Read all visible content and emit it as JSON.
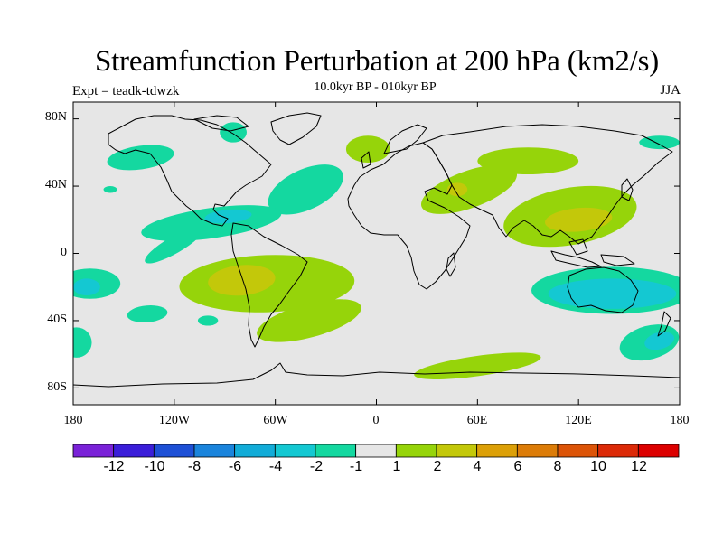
{
  "title": "Streamfunction Perturbation at 200 hPa (km2/s)",
  "subtitle": "10.0kyr BP - 010kyr BP",
  "experiment_label": "Expt = teadk-tdwzk",
  "season": "JJA",
  "map": {
    "projection": "cylindrical equidistant",
    "lon_range": [
      -180,
      180
    ],
    "lat_range": [
      -90,
      90
    ],
    "background": "#e6e6e6",
    "coastline_color": "#000000",
    "y_ticks": [
      {
        "lat": 80,
        "label": "80N"
      },
      {
        "lat": 40,
        "label": "40N"
      },
      {
        "lat": 0,
        "label": "0"
      },
      {
        "lat": -40,
        "label": "40S"
      },
      {
        "lat": -80,
        "label": "80S"
      }
    ],
    "x_ticks": [
      {
        "lon": -180,
        "label": "180"
      },
      {
        "lon": -120,
        "label": "120W"
      },
      {
        "lon": -60,
        "label": "60W"
      },
      {
        "lon": 0,
        "label": "0"
      },
      {
        "lon": 60,
        "label": "60E"
      },
      {
        "lon": 120,
        "label": "120E"
      },
      {
        "lon": 180,
        "label": "180"
      }
    ]
  },
  "colorbar": {
    "colors": [
      "#7a22d8",
      "#3b1ed9",
      "#1e50d6",
      "#1a84dc",
      "#12acd8",
      "#14c8d2",
      "#14d8a0",
      "#e6e6e6",
      "#96d40a",
      "#c3c80a",
      "#dca008",
      "#dc7c08",
      "#dc5408",
      "#dc2a08",
      "#dc0000"
    ],
    "labels": [
      "-12",
      "-10",
      "-8",
      "-6",
      "-4",
      "-2",
      "-1",
      "1",
      "2",
      "4",
      "6",
      "8",
      "10",
      "12"
    ]
  },
  "anomaly_regions": [
    {
      "name": "north-pacific-positive-1",
      "level": "-1",
      "lon": -140,
      "lat": 57,
      "rx": 20,
      "ry": 7,
      "rot": -8
    },
    {
      "name": "north-atlantic-negative",
      "level": "-1",
      "lon": -42,
      "lat": 38,
      "rx": 24,
      "ry": 12,
      "rot": -25
    },
    {
      "name": "caribbean-trough",
      "level": "-1",
      "lon": -98,
      "lat": 18,
      "rx": 42,
      "ry": 9,
      "rot": -8
    },
    {
      "name": "caribbean-core",
      "level": "-2",
      "lon": -88,
      "lat": 22,
      "rx": 14,
      "ry": 4,
      "rot": -5
    },
    {
      "name": "east-pacific-tail",
      "level": "-1",
      "lon": -120,
      "lat": 5,
      "rx": 20,
      "ry": 5,
      "rot": -30
    },
    {
      "name": "small-cell-pacific",
      "level": "-1",
      "lon": -158,
      "lat": 38,
      "rx": 4,
      "ry": 2,
      "rot": 0
    },
    {
      "name": "west-pacific-south",
      "level": "-1",
      "lon": -170,
      "lat": -18,
      "rx": 18,
      "ry": 9,
      "rot": 0
    },
    {
      "name": "west-pacific-south-core",
      "level": "-2",
      "lon": -172,
      "lat": -20,
      "rx": 8,
      "ry": 5,
      "rot": 0
    },
    {
      "name": "south-pacific-small",
      "level": "-1",
      "lon": -136,
      "lat": -36,
      "rx": 12,
      "ry": 5,
      "rot": -5
    },
    {
      "name": "south-pacific-cell",
      "level": "-1",
      "lon": -100,
      "lat": -40,
      "rx": 6,
      "ry": 3,
      "rot": 0
    },
    {
      "name": "south-pacific-edge",
      "level": "-1",
      "lon": -178,
      "lat": -53,
      "rx": 9,
      "ry": 9,
      "rot": 0
    },
    {
      "name": "australia-positive",
      "level": "-1",
      "lon": 140,
      "lat": -22,
      "rx": 48,
      "ry": 14,
      "rot": 0
    },
    {
      "name": "australia-core",
      "level": "-2",
      "lon": 140,
      "lat": -24,
      "rx": 38,
      "ry": 9,
      "rot": 0
    },
    {
      "name": "south-of-nz",
      "level": "-1",
      "lon": 162,
      "lat": -53,
      "rx": 18,
      "ry": 10,
      "rot": -15
    },
    {
      "name": "south-of-nz-core",
      "level": "-2",
      "lon": 168,
      "lat": -52,
      "rx": 9,
      "ry": 5,
      "rot": -15
    },
    {
      "name": "arctic-east",
      "level": "-1",
      "lon": 168,
      "lat": 66,
      "rx": 12,
      "ry": 4,
      "rot": 0
    },
    {
      "name": "north-america-high",
      "level": "-1",
      "lon": -85,
      "lat": 72,
      "rx": 8,
      "ry": 6,
      "rot": 0
    },
    {
      "name": "south-america-positive",
      "level": "1",
      "lon": -65,
      "lat": -18,
      "rx": 52,
      "ry": 17,
      "rot": -2
    },
    {
      "name": "south-atlantic-positive",
      "level": "1",
      "lon": -40,
      "lat": -40,
      "rx": 32,
      "ry": 10,
      "rot": -15
    },
    {
      "name": "south-america-core",
      "level": "2",
      "lon": -80,
      "lat": -16,
      "rx": 20,
      "ry": 9,
      "rot": -5
    },
    {
      "name": "europe-positive",
      "level": "1",
      "lon": -5,
      "lat": 62,
      "rx": 13,
      "ry": 8,
      "rot": 0
    },
    {
      "name": "middle-east-positive",
      "level": "1",
      "lon": 55,
      "lat": 38,
      "rx": 30,
      "ry": 11,
      "rot": -20
    },
    {
      "name": "asia-positive",
      "level": "1",
      "lon": 115,
      "lat": 22,
      "rx": 40,
      "ry": 17,
      "rot": -10
    },
    {
      "name": "siberia-positive",
      "level": "1",
      "lon": 90,
      "lat": 55,
      "rx": 30,
      "ry": 8,
      "rot": 0
    },
    {
      "name": "asia-core",
      "level": "2",
      "lon": 120,
      "lat": 20,
      "rx": 20,
      "ry": 7,
      "rot": -5
    },
    {
      "name": "middle-east-core",
      "level": "2",
      "lon": 48,
      "lat": 38,
      "rx": 6,
      "ry": 4,
      "rot": 0
    },
    {
      "name": "antarctic-positive",
      "level": "1",
      "lon": 60,
      "lat": -67,
      "rx": 38,
      "ry": 6,
      "rot": -8
    }
  ]
}
